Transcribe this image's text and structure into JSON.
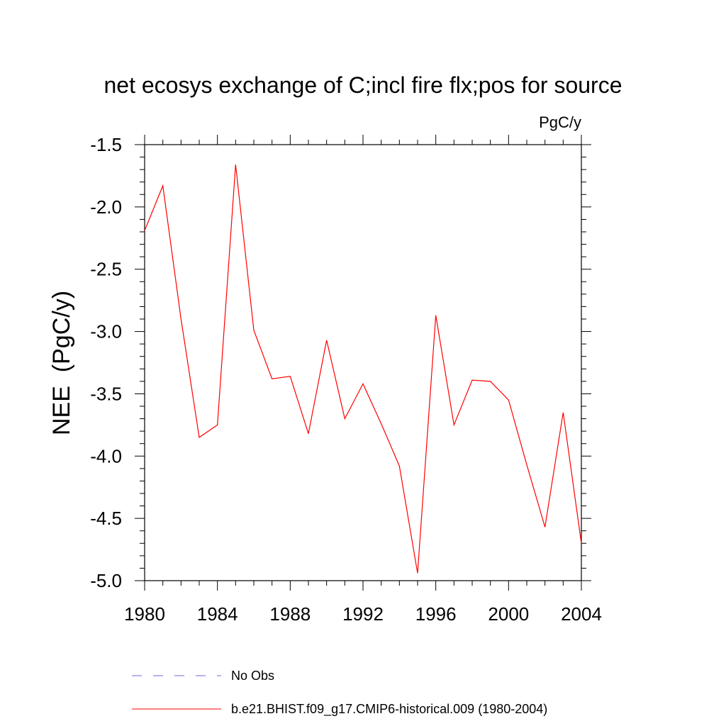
{
  "chart_data": {
    "type": "line",
    "title": "net ecosys exchange of C;incl fire flx;pos for source",
    "units": "PgC/y",
    "ylabel": "NEE  (PgC/y)",
    "xlabel": "",
    "xlim": [
      1980,
      2004
    ],
    "ylim": [
      -5.0,
      -1.5
    ],
    "x_ticks": [
      1980,
      1984,
      1988,
      1992,
      1996,
      2000,
      2004
    ],
    "x_tick_labels": [
      "1980",
      "1984",
      "1988",
      "1992",
      "1996",
      "2000",
      "2004"
    ],
    "y_ticks": [
      -1.5,
      -2.0,
      -2.5,
      -3.0,
      -3.5,
      -4.0,
      -4.5,
      -5.0
    ],
    "y_tick_labels": [
      "-1.5",
      "-2.0",
      "-2.5",
      "-3.0",
      "-3.5",
      "-4.0",
      "-4.5",
      "-5.0"
    ],
    "grid": false,
    "legend_position": "bottom",
    "x": [
      1980,
      1981,
      1982,
      1983,
      1984,
      1985,
      1986,
      1987,
      1988,
      1989,
      1990,
      1991,
      1992,
      1993,
      1994,
      1995,
      1996,
      1997,
      1998,
      1999,
      2000,
      2001,
      2002,
      2003,
      2004
    ],
    "series": [
      {
        "name": "b.e21.BHIST.f09_g17.CMIP6-historical.009 (1980-2004)",
        "color": "#ff0000",
        "style": "solid",
        "values": [
          -2.19,
          -1.83,
          -2.9,
          -3.85,
          -3.75,
          -1.66,
          -2.99,
          -3.38,
          -3.36,
          -3.82,
          -3.07,
          -3.7,
          -3.42,
          -3.74,
          -4.08,
          -4.94,
          -2.87,
          -3.75,
          -3.39,
          -3.4,
          -3.55,
          -4.07,
          -4.57,
          -3.65,
          -4.7
        ]
      }
    ],
    "legend": [
      {
        "label": "No Obs",
        "color": "#6b6bd6",
        "style": "dashed"
      },
      {
        "label": "b.e21.BHIST.f09_g17.CMIP6-historical.009 (1980-2004)",
        "color": "#ff0000",
        "style": "solid"
      }
    ]
  }
}
